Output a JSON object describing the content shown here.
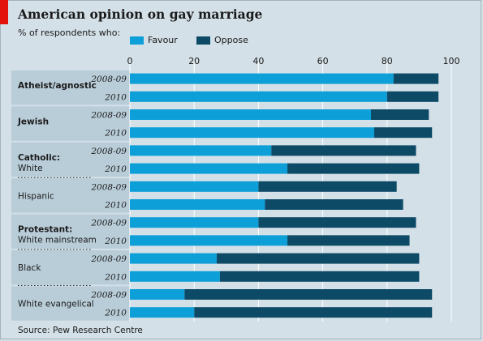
{
  "title": "American opinion on gay marriage",
  "subtitle": "% of respondents who:",
  "source": "Source: Pew Research Centre",
  "colors": {
    "favour": "#0d9fd8",
    "oppose": "#0d4a66",
    "accent_red": "#e3120b",
    "label_panel": "#b9cdd9",
    "background": "#d3e0e8"
  },
  "chart_data": {
    "type": "bar",
    "orientation": "horizontal",
    "stacked": true,
    "title": "American opinion on gay marriage",
    "subtitle": "% of respondents who:",
    "xlim": [
      0,
      100
    ],
    "xticks": [
      0,
      20,
      40,
      60,
      80,
      100
    ],
    "legend": {
      "position": "top",
      "entries": [
        "Favour",
        "Oppose"
      ]
    },
    "groups": [
      {
        "header": "Atheist/agnostic",
        "bold": true,
        "sub": ""
      },
      {
        "header": "Jewish",
        "bold": true,
        "sub": ""
      },
      {
        "header": "Catholic:",
        "bold": true,
        "sub": "White"
      },
      {
        "header": "",
        "bold": false,
        "sub": "Hispanic"
      },
      {
        "header": "Protestant:",
        "bold": true,
        "sub": "White mainstream"
      },
      {
        "header": "",
        "bold": false,
        "sub": "Black"
      },
      {
        "header": "",
        "bold": false,
        "sub": "White evangelical"
      }
    ],
    "rows": [
      {
        "group": 0,
        "period": "2008-09",
        "favour": 82,
        "oppose": 14
      },
      {
        "group": 0,
        "period": "2010",
        "favour": 80,
        "oppose": 16
      },
      {
        "group": 1,
        "period": "2008-09",
        "favour": 75,
        "oppose": 18
      },
      {
        "group": 1,
        "period": "2010",
        "favour": 76,
        "oppose": 18
      },
      {
        "group": 2,
        "period": "2008-09",
        "favour": 44,
        "oppose": 45
      },
      {
        "group": 2,
        "period": "2010",
        "favour": 49,
        "oppose": 41
      },
      {
        "group": 3,
        "period": "2008-09",
        "favour": 40,
        "oppose": 43
      },
      {
        "group": 3,
        "period": "2010",
        "favour": 42,
        "oppose": 43
      },
      {
        "group": 4,
        "period": "2008-09",
        "favour": 40,
        "oppose": 49
      },
      {
        "group": 4,
        "period": "2010",
        "favour": 49,
        "oppose": 38
      },
      {
        "group": 5,
        "period": "2008-09",
        "favour": 27,
        "oppose": 63
      },
      {
        "group": 5,
        "period": "2010",
        "favour": 28,
        "oppose": 62
      },
      {
        "group": 6,
        "period": "2008-09",
        "favour": 17,
        "oppose": 77
      },
      {
        "group": 6,
        "period": "2010",
        "favour": 20,
        "oppose": 74
      }
    ],
    "series": [
      {
        "name": "Favour",
        "values": [
          82,
          80,
          75,
          76,
          44,
          49,
          40,
          42,
          40,
          49,
          27,
          28,
          17,
          20
        ]
      },
      {
        "name": "Oppose",
        "values": [
          14,
          16,
          18,
          18,
          45,
          41,
          43,
          43,
          49,
          38,
          63,
          62,
          77,
          74
        ]
      }
    ]
  }
}
